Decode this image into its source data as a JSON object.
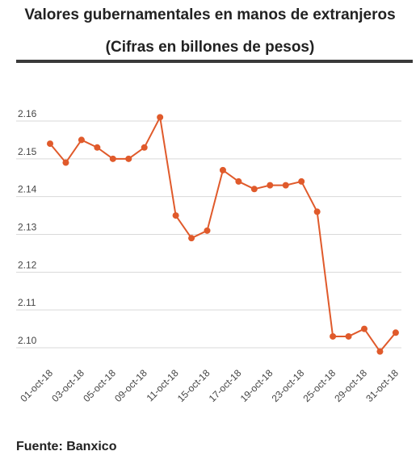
{
  "header": {
    "title": "Valores gubernamentales en manos de extranjeros",
    "subtitle": "(Cifras en billones de pesos)"
  },
  "footer": {
    "source": "Fuente: Banxico"
  },
  "chart_data": {
    "type": "line",
    "title": "Valores gubernamentales en manos de extranjeros",
    "subtitle": "(Cifras en billones de pesos)",
    "xlabel": "",
    "ylabel": "",
    "ylim": [
      2.095,
      2.165
    ],
    "y_ticks": [
      "2.10",
      "2.11",
      "2.12",
      "2.13",
      "2.14",
      "2.15",
      "2.16"
    ],
    "x_tick_labels": [
      "01-oct-18",
      "03-oct-18",
      "05-oct-18",
      "09-oct-18",
      "11-oct-18",
      "15-oct-18",
      "17-oct-18",
      "19-oct-18",
      "23-oct-18",
      "25-oct-18",
      "29-oct-18",
      "31-oct-18"
    ],
    "x_tick_indices": [
      0,
      2,
      4,
      6,
      8,
      10,
      12,
      14,
      16,
      18,
      20,
      22
    ],
    "grid": true,
    "line_color": "#e05a2b",
    "series": [
      {
        "values": [
          2.154,
          2.149,
          2.155,
          2.153,
          2.15,
          2.15,
          2.153,
          2.161,
          2.135,
          2.129,
          2.131,
          2.147,
          2.144,
          2.142,
          2.143,
          2.143,
          2.144,
          2.136,
          2.103,
          2.103,
          2.105,
          2.099,
          2.104
        ]
      }
    ]
  }
}
